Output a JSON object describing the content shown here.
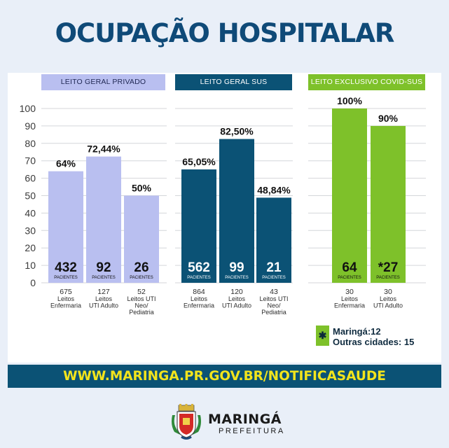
{
  "title": "OCUPAÇÃO HOSPITALAR",
  "chart_data": {
    "type": "bar",
    "y_ticks": [
      100,
      90,
      80,
      70,
      60,
      50,
      40,
      30,
      20,
      10,
      0
    ],
    "ylim": [
      0,
      100
    ],
    "grid": true,
    "sections": [
      {
        "header": "LEITO GERAL PRIVADO",
        "header_bg": "#b9bff0",
        "header_fg": "#222a55",
        "bar_color": "#b9bff0",
        "patients_color": "#111111",
        "bars": [
          {
            "value": 64,
            "value_label": "64%",
            "patients": "432",
            "patients_label": "PACIENTES",
            "beds": "675",
            "category": [
              "Leitos",
              "Enfermaria"
            ]
          },
          {
            "value": 72.44,
            "value_label": "72,44%",
            "patients": "92",
            "patients_label": "PACIENTES",
            "beds": "127",
            "category": [
              "Leitos",
              "UTI Adulto"
            ]
          },
          {
            "value": 50,
            "value_label": "50%",
            "patients": "26",
            "patients_label": "PACIENTES",
            "beds": "52",
            "category": [
              "Leitos UTI",
              "Neo/",
              "Pediatria"
            ]
          }
        ]
      },
      {
        "header": "LEITO GERAL SUS",
        "header_bg": "#0b5275",
        "header_fg": "#ffffff",
        "bar_color": "#0b5275",
        "patients_color": "#ffffff",
        "bars": [
          {
            "value": 65.05,
            "value_label": "65,05%",
            "patients": "562",
            "patients_label": "PACIENTES",
            "beds": "864",
            "category": [
              "Leitos",
              "Enfermaria"
            ]
          },
          {
            "value": 82.5,
            "value_label": "82,50%",
            "patients": "99",
            "patients_label": "PACIENTES",
            "beds": "120",
            "category": [
              "Leitos",
              "UTI Adulto"
            ]
          },
          {
            "value": 48.84,
            "value_label": "48,84%",
            "patients": "21",
            "patients_label": "PACIENTES",
            "beds": "43",
            "category": [
              "Leitos UTI",
              "Neo/",
              "Pediatria"
            ]
          }
        ]
      },
      {
        "header": "LEITO EXCLUSIVO COVID-SUS",
        "header_bg": "#7ec12a",
        "header_fg": "#ffffff",
        "bar_color": "#7ec12a",
        "patients_color": "#111111",
        "bars": [
          {
            "value": 100,
            "value_label": "100%",
            "patients": "64",
            "patients_label": "PACIENTES",
            "beds": "30",
            "category": [
              "Leitos",
              "Enfermaria"
            ]
          },
          {
            "value": 90,
            "value_label": "90%",
            "patients": "*27",
            "patients_label": "PACIENTES",
            "beds": "30",
            "category": [
              "Leitos",
              "UTI Adulto"
            ]
          }
        ]
      }
    ]
  },
  "legend": {
    "symbol": "✱",
    "line1": "Maringá:12",
    "line2": "Outras cidades: 15"
  },
  "footer_url": "WWW.MARINGA.PR.GOV.BR/NOTIFICASAUDE",
  "brand": {
    "name": "MARINGÁ",
    "subtitle": "PREFEITURA"
  }
}
